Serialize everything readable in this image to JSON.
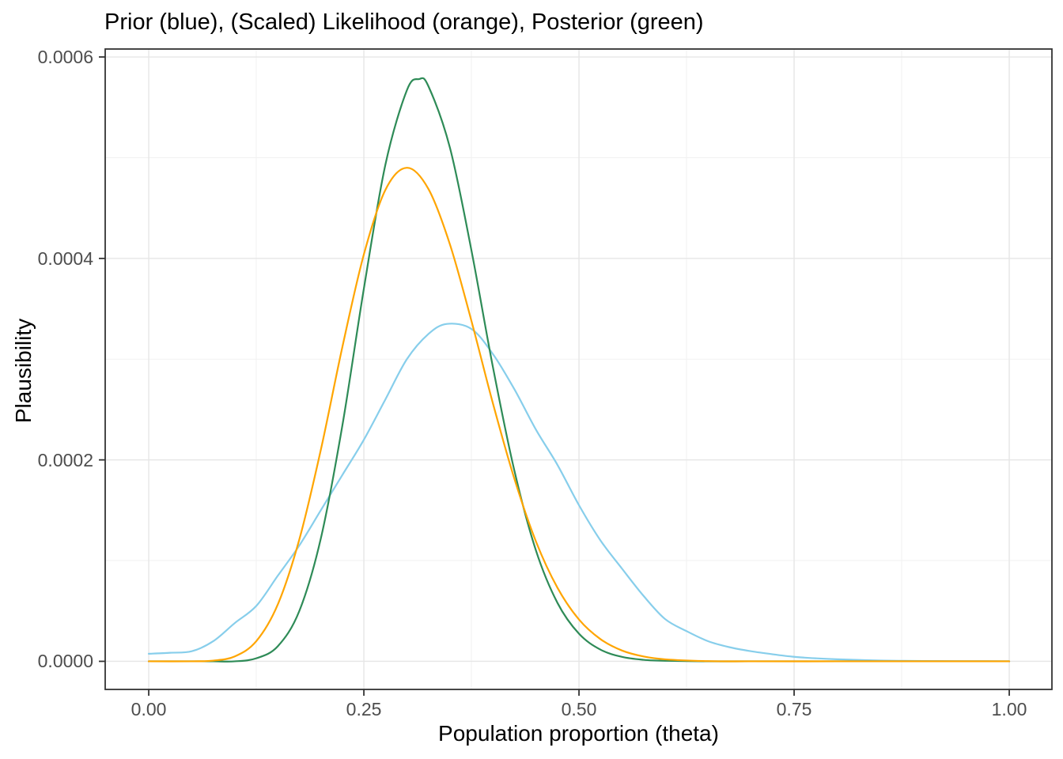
{
  "chart_data": {
    "type": "line",
    "title": "Prior (blue), (Scaled) Likelihood (orange), Posterior (green)",
    "xlabel": "Population proportion (theta)",
    "ylabel": "Plausibility",
    "xlim": [
      -0.0506,
      1.0496
    ],
    "ylim": [
      -2.79e-05,
      0.0006079
    ],
    "grid": true,
    "legend_position": "none",
    "x_ticks": {
      "values": [
        0,
        0.25,
        0.5,
        0.75,
        1
      ],
      "labels": [
        "0.00",
        "0.25",
        "0.50",
        "0.75",
        "1.00"
      ]
    },
    "y_ticks": {
      "values": [
        0,
        0.0002,
        0.0004,
        0.0006
      ],
      "labels": [
        "0.0000",
        "0.0002",
        "0.0004",
        "0.0006"
      ]
    },
    "x_minor_gridlines": [
      0.125,
      0.375,
      0.625,
      0.875
    ],
    "y_minor_gridlines": [
      0.0001,
      0.0003,
      0.0005
    ],
    "draw_order": [
      "prior",
      "posterior",
      "scaled_likelihood"
    ],
    "series": [
      {
        "name": "prior",
        "label": "Prior",
        "color": "#87CEEB",
        "peak_x": 0.3465,
        "peak_y": 0.000335,
        "points": [
          [
            0,
            7.5e-06
          ],
          [
            0.025,
            8.5e-06
          ],
          [
            0.05,
            1e-05
          ],
          [
            0.075,
            2e-05
          ],
          [
            0.1,
            3.8e-05
          ],
          [
            0.125,
            5.5e-05
          ],
          [
            0.15,
            8.5e-05
          ],
          [
            0.175,
            0.000115
          ],
          [
            0.2,
            0.00015
          ],
          [
            0.225,
            0.000185
          ],
          [
            0.25,
            0.00022
          ],
          [
            0.275,
            0.00026
          ],
          [
            0.3,
            0.0003
          ],
          [
            0.325,
            0.000325
          ],
          [
            0.3465,
            0.000335
          ],
          [
            0.375,
            0.00033
          ],
          [
            0.4,
            0.000305
          ],
          [
            0.425,
            0.00027
          ],
          [
            0.45,
            0.00023
          ],
          [
            0.475,
            0.000195
          ],
          [
            0.5,
            0.000155
          ],
          [
            0.525,
            0.00012
          ],
          [
            0.55,
            9.2e-05
          ],
          [
            0.575,
            6.5e-05
          ],
          [
            0.6,
            4.2e-05
          ],
          [
            0.625,
            3e-05
          ],
          [
            0.65,
            2e-05
          ],
          [
            0.675,
            1.4e-05
          ],
          [
            0.7,
            1e-05
          ],
          [
            0.725,
            7e-06
          ],
          [
            0.75,
            4.5e-06
          ],
          [
            0.775,
            3e-06
          ],
          [
            0.8,
            2e-06
          ],
          [
            0.85,
            8e-07
          ],
          [
            0.9,
            3e-07
          ],
          [
            0.95,
            1e-07
          ],
          [
            1,
            0
          ]
        ]
      },
      {
        "name": "scaled_likelihood",
        "label": "(Scaled) Likelihood",
        "color": "#FFA500",
        "peak_x": 0.3,
        "peak_y": 0.00049,
        "points": [
          [
            0,
            0
          ],
          [
            0.05,
            0
          ],
          [
            0.075,
            7e-07
          ],
          [
            0.1,
            4.9e-06
          ],
          [
            0.125,
            2e-05
          ],
          [
            0.15,
            5.65e-05
          ],
          [
            0.175,
            0.000121
          ],
          [
            0.2,
            0.00021
          ],
          [
            0.225,
            0.000312
          ],
          [
            0.25,
            0.000404
          ],
          [
            0.275,
            0.000468
          ],
          [
            0.3,
            0.00049
          ],
          [
            0.325,
            0.000469
          ],
          [
            0.35,
            0.000414
          ],
          [
            0.375,
            0.000338
          ],
          [
            0.4,
            0.000256
          ],
          [
            0.425,
            0.000181
          ],
          [
            0.45,
            0.000119
          ],
          [
            0.475,
            7.3e-05
          ],
          [
            0.5,
            4.15e-05
          ],
          [
            0.525,
            2.2e-05
          ],
          [
            0.55,
            1.07e-05
          ],
          [
            0.575,
            4.8e-06
          ],
          [
            0.6,
            2e-06
          ],
          [
            0.65,
            2e-07
          ],
          [
            0.7,
            0
          ],
          [
            0.8,
            0
          ],
          [
            0.9,
            0
          ],
          [
            1,
            0
          ]
        ]
      },
      {
        "name": "posterior",
        "label": "Posterior",
        "color": "#2E8B57",
        "peak_x": 0.314,
        "peak_y": 0.000578,
        "points": [
          [
            0,
            0
          ],
          [
            0.05,
            0
          ],
          [
            0.075,
            0
          ],
          [
            0.1,
            0
          ],
          [
            0.125,
            3e-06
          ],
          [
            0.15,
            1.5e-05
          ],
          [
            0.175,
            5e-05
          ],
          [
            0.2,
            0.000122
          ],
          [
            0.225,
            0.000234
          ],
          [
            0.25,
            0.00037
          ],
          [
            0.275,
            0.000493
          ],
          [
            0.3,
            0.000567
          ],
          [
            0.314,
            0.000578
          ],
          [
            0.325,
            0.000571
          ],
          [
            0.35,
            0.00051
          ],
          [
            0.375,
            0.000408
          ],
          [
            0.4,
            0.000292
          ],
          [
            0.425,
            0.000189
          ],
          [
            0.45,
            0.00011
          ],
          [
            0.475,
            5.8e-05
          ],
          [
            0.5,
            2.74e-05
          ],
          [
            0.525,
            1.16e-05
          ],
          [
            0.55,
            4.4e-06
          ],
          [
            0.575,
            1.5e-06
          ],
          [
            0.6,
            5e-07
          ],
          [
            0.65,
            0
          ],
          [
            0.7,
            0
          ],
          [
            0.8,
            0
          ],
          [
            0.9,
            0
          ],
          [
            1,
            0
          ]
        ]
      }
    ],
    "style": {
      "panel_background": "#ffffff",
      "page_background": "#ffffff",
      "grid_major_color": "#e6e6e6",
      "grid_minor_color": "#f1f1f1",
      "panel_border_color": "#333333",
      "tick_color": "#333333",
      "tick_label_color": "#4d4d4d",
      "title_color": "#000000",
      "axis_title_color": "#000000",
      "line_width": 2.2
    }
  }
}
